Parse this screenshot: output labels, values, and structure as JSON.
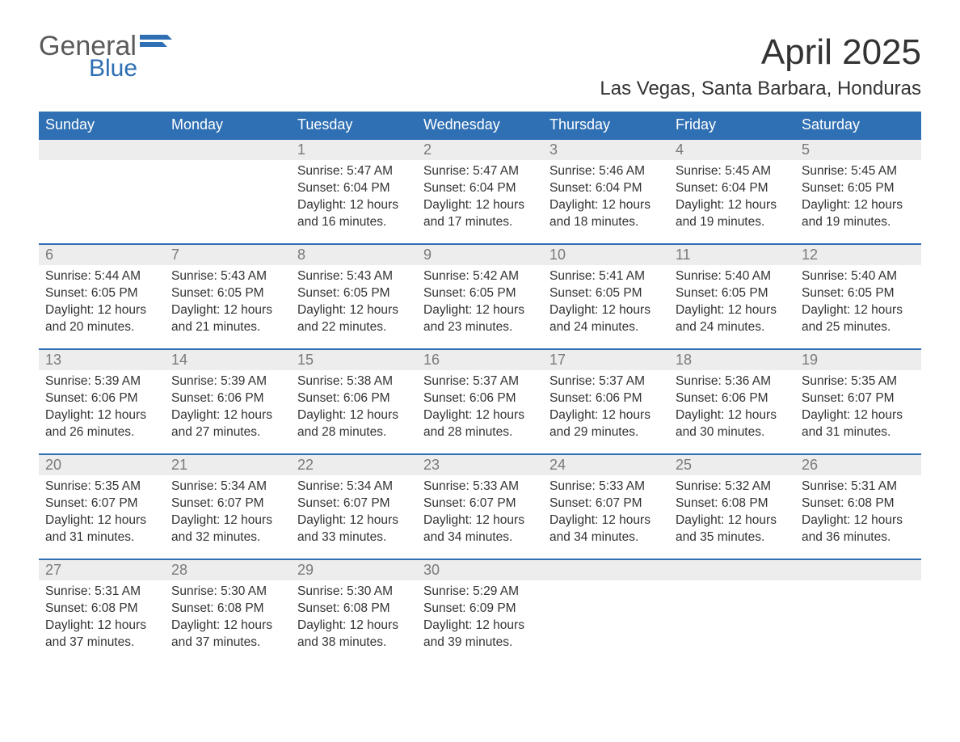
{
  "logo": {
    "top": "General",
    "bottom": "Blue",
    "flag_color": "#2f6fb3"
  },
  "title": "April 2025",
  "location": "Las Vegas, Santa Barbara, Honduras",
  "colors": {
    "header_bg": "#2f6fb3",
    "header_text": "#ffffff",
    "daynum_bg": "#ededed",
    "daynum_text": "#7a7a7a",
    "body_text": "#333333",
    "week_border": "#2f6fb3",
    "page_bg": "#ffffff"
  },
  "typography": {
    "title_fontsize": 44,
    "location_fontsize": 24,
    "header_fontsize": 18,
    "daynum_fontsize": 18,
    "body_fontsize": 15.5,
    "font_family": "Arial"
  },
  "day_names": [
    "Sunday",
    "Monday",
    "Tuesday",
    "Wednesday",
    "Thursday",
    "Friday",
    "Saturday"
  ],
  "labels": {
    "sunrise": "Sunrise: ",
    "sunset": "Sunset: ",
    "daylight": "Daylight: "
  },
  "weeks": [
    [
      null,
      null,
      {
        "n": "1",
        "sunrise": "5:47 AM",
        "sunset": "6:04 PM",
        "daylight": "12 hours and 16 minutes."
      },
      {
        "n": "2",
        "sunrise": "5:47 AM",
        "sunset": "6:04 PM",
        "daylight": "12 hours and 17 minutes."
      },
      {
        "n": "3",
        "sunrise": "5:46 AM",
        "sunset": "6:04 PM",
        "daylight": "12 hours and 18 minutes."
      },
      {
        "n": "4",
        "sunrise": "5:45 AM",
        "sunset": "6:04 PM",
        "daylight": "12 hours and 19 minutes."
      },
      {
        "n": "5",
        "sunrise": "5:45 AM",
        "sunset": "6:05 PM",
        "daylight": "12 hours and 19 minutes."
      }
    ],
    [
      {
        "n": "6",
        "sunrise": "5:44 AM",
        "sunset": "6:05 PM",
        "daylight": "12 hours and 20 minutes."
      },
      {
        "n": "7",
        "sunrise": "5:43 AM",
        "sunset": "6:05 PM",
        "daylight": "12 hours and 21 minutes."
      },
      {
        "n": "8",
        "sunrise": "5:43 AM",
        "sunset": "6:05 PM",
        "daylight": "12 hours and 22 minutes."
      },
      {
        "n": "9",
        "sunrise": "5:42 AM",
        "sunset": "6:05 PM",
        "daylight": "12 hours and 23 minutes."
      },
      {
        "n": "10",
        "sunrise": "5:41 AM",
        "sunset": "6:05 PM",
        "daylight": "12 hours and 24 minutes."
      },
      {
        "n": "11",
        "sunrise": "5:40 AM",
        "sunset": "6:05 PM",
        "daylight": "12 hours and 24 minutes."
      },
      {
        "n": "12",
        "sunrise": "5:40 AM",
        "sunset": "6:05 PM",
        "daylight": "12 hours and 25 minutes."
      }
    ],
    [
      {
        "n": "13",
        "sunrise": "5:39 AM",
        "sunset": "6:06 PM",
        "daylight": "12 hours and 26 minutes."
      },
      {
        "n": "14",
        "sunrise": "5:39 AM",
        "sunset": "6:06 PM",
        "daylight": "12 hours and 27 minutes."
      },
      {
        "n": "15",
        "sunrise": "5:38 AM",
        "sunset": "6:06 PM",
        "daylight": "12 hours and 28 minutes."
      },
      {
        "n": "16",
        "sunrise": "5:37 AM",
        "sunset": "6:06 PM",
        "daylight": "12 hours and 28 minutes."
      },
      {
        "n": "17",
        "sunrise": "5:37 AM",
        "sunset": "6:06 PM",
        "daylight": "12 hours and 29 minutes."
      },
      {
        "n": "18",
        "sunrise": "5:36 AM",
        "sunset": "6:06 PM",
        "daylight": "12 hours and 30 minutes."
      },
      {
        "n": "19",
        "sunrise": "5:35 AM",
        "sunset": "6:07 PM",
        "daylight": "12 hours and 31 minutes."
      }
    ],
    [
      {
        "n": "20",
        "sunrise": "5:35 AM",
        "sunset": "6:07 PM",
        "daylight": "12 hours and 31 minutes."
      },
      {
        "n": "21",
        "sunrise": "5:34 AM",
        "sunset": "6:07 PM",
        "daylight": "12 hours and 32 minutes."
      },
      {
        "n": "22",
        "sunrise": "5:34 AM",
        "sunset": "6:07 PM",
        "daylight": "12 hours and 33 minutes."
      },
      {
        "n": "23",
        "sunrise": "5:33 AM",
        "sunset": "6:07 PM",
        "daylight": "12 hours and 34 minutes."
      },
      {
        "n": "24",
        "sunrise": "5:33 AM",
        "sunset": "6:07 PM",
        "daylight": "12 hours and 34 minutes."
      },
      {
        "n": "25",
        "sunrise": "5:32 AM",
        "sunset": "6:08 PM",
        "daylight": "12 hours and 35 minutes."
      },
      {
        "n": "26",
        "sunrise": "5:31 AM",
        "sunset": "6:08 PM",
        "daylight": "12 hours and 36 minutes."
      }
    ],
    [
      {
        "n": "27",
        "sunrise": "5:31 AM",
        "sunset": "6:08 PM",
        "daylight": "12 hours and 37 minutes."
      },
      {
        "n": "28",
        "sunrise": "5:30 AM",
        "sunset": "6:08 PM",
        "daylight": "12 hours and 37 minutes."
      },
      {
        "n": "29",
        "sunrise": "5:30 AM",
        "sunset": "6:08 PM",
        "daylight": "12 hours and 38 minutes."
      },
      {
        "n": "30",
        "sunrise": "5:29 AM",
        "sunset": "6:09 PM",
        "daylight": "12 hours and 39 minutes."
      },
      null,
      null,
      null
    ]
  ]
}
